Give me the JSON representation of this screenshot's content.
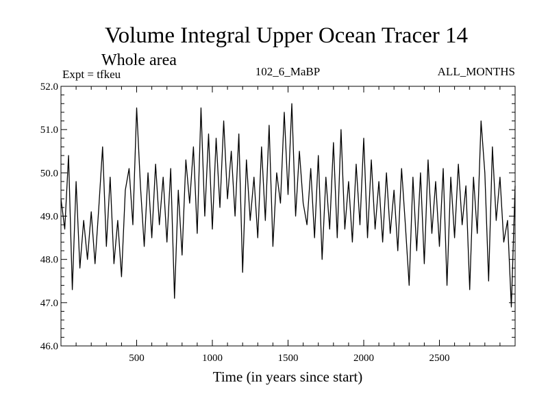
{
  "chart_data": {
    "type": "line",
    "title": "Volume Integral Upper Ocean Tracer 14",
    "subtitle": "Whole area",
    "experiment_label": "Expt = tfkeu",
    "run_label": "102_6_MaBP",
    "months_label": "ALL_MONTHS",
    "xlabel": "Time (in years since start)",
    "ylabel": "",
    "xlim": [
      0,
      3000
    ],
    "ylim": [
      46.0,
      52.0
    ],
    "x_ticks": [
      500,
      1000,
      1500,
      2000,
      2500
    ],
    "y_ticks": [
      46.0,
      47.0,
      48.0,
      49.0,
      50.0,
      51.0,
      52.0
    ],
    "x_tick_labels": [
      "500",
      "1000",
      "1500",
      "2000",
      "2500"
    ],
    "y_tick_labels": [
      "46.0",
      "47.0",
      "48.0",
      "49.0",
      "50.0",
      "51.0",
      "52.0"
    ],
    "grid": false,
    "line_color": "#000000",
    "series": [
      {
        "x": [
          0,
          25,
          50,
          75,
          100,
          125,
          150,
          175,
          200,
          225,
          250,
          275,
          300,
          325,
          350,
          375,
          400,
          425,
          450,
          475,
          500,
          525,
          550,
          575,
          600,
          625,
          650,
          675,
          700,
          725,
          750,
          775,
          800,
          825,
          850,
          875,
          900,
          925,
          950,
          975,
          1000,
          1025,
          1050,
          1075,
          1100,
          1125,
          1150,
          1175,
          1200,
          1225,
          1250,
          1275,
          1300,
          1325,
          1350,
          1375,
          1400,
          1425,
          1450,
          1475,
          1500,
          1525,
          1550,
          1575,
          1600,
          1625,
          1650,
          1675,
          1700,
          1725,
          1750,
          1775,
          1800,
          1825,
          1850,
          1875,
          1900,
          1925,
          1950,
          1975,
          2000,
          2025,
          2050,
          2075,
          2100,
          2125,
          2150,
          2175,
          2200,
          2225,
          2250,
          2275,
          2300,
          2325,
          2350,
          2375,
          2400,
          2425,
          2450,
          2475,
          2500,
          2525,
          2550,
          2575,
          2600,
          2625,
          2650,
          2675,
          2700,
          2725,
          2750,
          2775,
          2800,
          2825,
          2850,
          2875,
          2900,
          2925,
          2950,
          2975,
          3000
        ],
        "values": [
          49.4,
          48.7,
          50.4,
          47.3,
          49.8,
          47.8,
          48.9,
          48.0,
          49.1,
          47.9,
          49.2,
          50.6,
          48.3,
          49.9,
          47.9,
          48.9,
          47.6,
          49.6,
          50.1,
          48.8,
          51.5,
          49.7,
          48.3,
          50.0,
          48.5,
          50.2,
          48.8,
          49.9,
          48.4,
          50.1,
          47.1,
          49.6,
          48.1,
          50.3,
          49.3,
          50.6,
          48.6,
          51.5,
          49.0,
          50.9,
          48.7,
          50.8,
          49.2,
          51.2,
          49.4,
          50.5,
          49.0,
          50.9,
          47.7,
          50.3,
          48.9,
          49.9,
          48.5,
          50.6,
          48.9,
          51.1,
          48.3,
          50.0,
          49.3,
          51.4,
          49.5,
          51.6,
          49.0,
          50.5,
          49.3,
          48.8,
          50.1,
          48.5,
          50.4,
          48.0,
          49.9,
          48.7,
          50.7,
          48.5,
          51.0,
          48.7,
          49.8,
          48.4,
          50.2,
          48.8,
          50.8,
          48.5,
          50.3,
          48.7,
          49.8,
          48.4,
          50.0,
          48.6,
          49.6,
          48.2,
          50.1,
          48.8,
          47.4,
          49.9,
          48.2,
          50.0,
          47.9,
          50.3,
          48.6,
          49.8,
          48.3,
          50.1,
          47.4,
          49.9,
          48.5,
          50.2,
          48.8,
          49.7,
          47.3,
          49.9,
          48.6,
          51.2,
          50.0,
          47.5,
          50.6,
          48.9,
          49.9,
          48.4,
          48.9,
          46.9,
          49.7
        ]
      }
    ]
  }
}
